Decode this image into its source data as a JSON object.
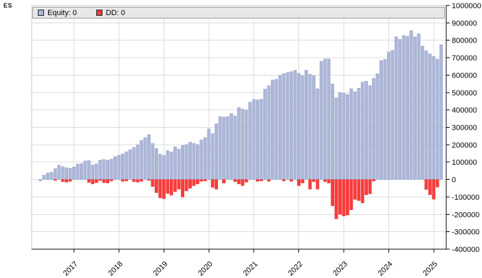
{
  "page": {
    "symbol": "ES"
  },
  "legend": {
    "equity_label": "Equity: 0",
    "dd_label": "DD: 0"
  },
  "colors": {
    "background": "#FFFFFF",
    "grid": "#DCDCDC",
    "plot_border": "#C8C8C8",
    "axis": "#000000",
    "legend_bg": "#E7E7E7",
    "legend_border": "#9C9C9C",
    "equity_fill": "#ACB7D9",
    "equity_stroke": "#99A4C8",
    "dd_fill": "#FB3B3B",
    "dd_stroke": "#E03232"
  },
  "chart_data": {
    "type": "bar",
    "title": "ES",
    "frequency": "monthly",
    "start": "2016-04",
    "grid": true,
    "legend_position": "top",
    "ylim": [
      -400000,
      1000000
    ],
    "y_ticks": [
      1000000,
      900000,
      800000,
      700000,
      600000,
      500000,
      400000,
      300000,
      200000,
      100000,
      0,
      -100000,
      -200000,
      -300000,
      -400000
    ],
    "x_tick_labels": [
      "2017",
      "2018",
      "2019",
      "2020",
      "2021",
      "2022",
      "2023",
      "2024",
      "2025"
    ],
    "series": [
      {
        "name": "Equity",
        "legend_label": "Equity: 0",
        "color": "#ACB7D9",
        "values": [
          -8000,
          25000,
          38000,
          42000,
          63000,
          83000,
          74000,
          68000,
          64000,
          72000,
          89000,
          92000,
          107000,
          109000,
          84000,
          90000,
          112000,
          115000,
          112000,
          118000,
          132000,
          140000,
          148000,
          160000,
          172000,
          185000,
          200000,
          225000,
          241000,
          258000,
          208000,
          179000,
          146000,
          139000,
          166000,
          159000,
          188000,
          175000,
          196000,
          201000,
          215000,
          208000,
          201000,
          228000,
          241000,
          291000,
          264000,
          320000,
          362000,
          359000,
          362000,
          379000,
          366000,
          414000,
          405000,
          400000,
          445000,
          460000,
          458000,
          462000,
          520000,
          539000,
          572000,
          576000,
          598000,
          609000,
          615000,
          620000,
          628000,
          610000,
          597000,
          628000,
          605000,
          597000,
          522000,
          680000,
          693000,
          693000,
          549000,
          470000,
          500000,
          496000,
          489000,
          522000,
          505000,
          525000,
          560000,
          565000,
          540000,
          582000,
          608000,
          684000,
          690000,
          733000,
          742000,
          821000,
          805000,
          828000,
          823000,
          856000,
          820000,
          838000,
          767000,
          740000,
          722000,
          707000,
          692000,
          775000
        ]
      },
      {
        "name": "DD",
        "legend_label": "DD: 0",
        "color": "#FB3B3B",
        "values": [
          0,
          0,
          0,
          0,
          -5000,
          0,
          -12000,
          -15000,
          -10000,
          0,
          0,
          0,
          0,
          -16000,
          -25000,
          -18000,
          -6000,
          -18000,
          -20000,
          -8000,
          0,
          0,
          -10000,
          -8000,
          0,
          -12000,
          -15000,
          -10000,
          0,
          -5000,
          -40000,
          -75000,
          -105000,
          -110000,
          -80000,
          -90000,
          -70000,
          -55000,
          -100000,
          -65000,
          -50000,
          -35000,
          -25000,
          -10000,
          -8000,
          0,
          -45000,
          -55000,
          0,
          -20000,
          0,
          0,
          -12000,
          -25000,
          -35000,
          -15000,
          0,
          0,
          -10000,
          -8000,
          0,
          -10000,
          0,
          0,
          0,
          -8000,
          0,
          -10000,
          0,
          -35000,
          -20000,
          0,
          -55000,
          -12000,
          -55000,
          0,
          -12000,
          -20000,
          -151000,
          -226000,
          -200000,
          -209000,
          -204000,
          -174000,
          -114000,
          -121000,
          -134000,
          -88000,
          -82000,
          -8000,
          0,
          0,
          0,
          0,
          0,
          0,
          0,
          0,
          0,
          0,
          0,
          0,
          0,
          -57000,
          -87000,
          -113000,
          -43000,
          0
        ]
      }
    ]
  }
}
